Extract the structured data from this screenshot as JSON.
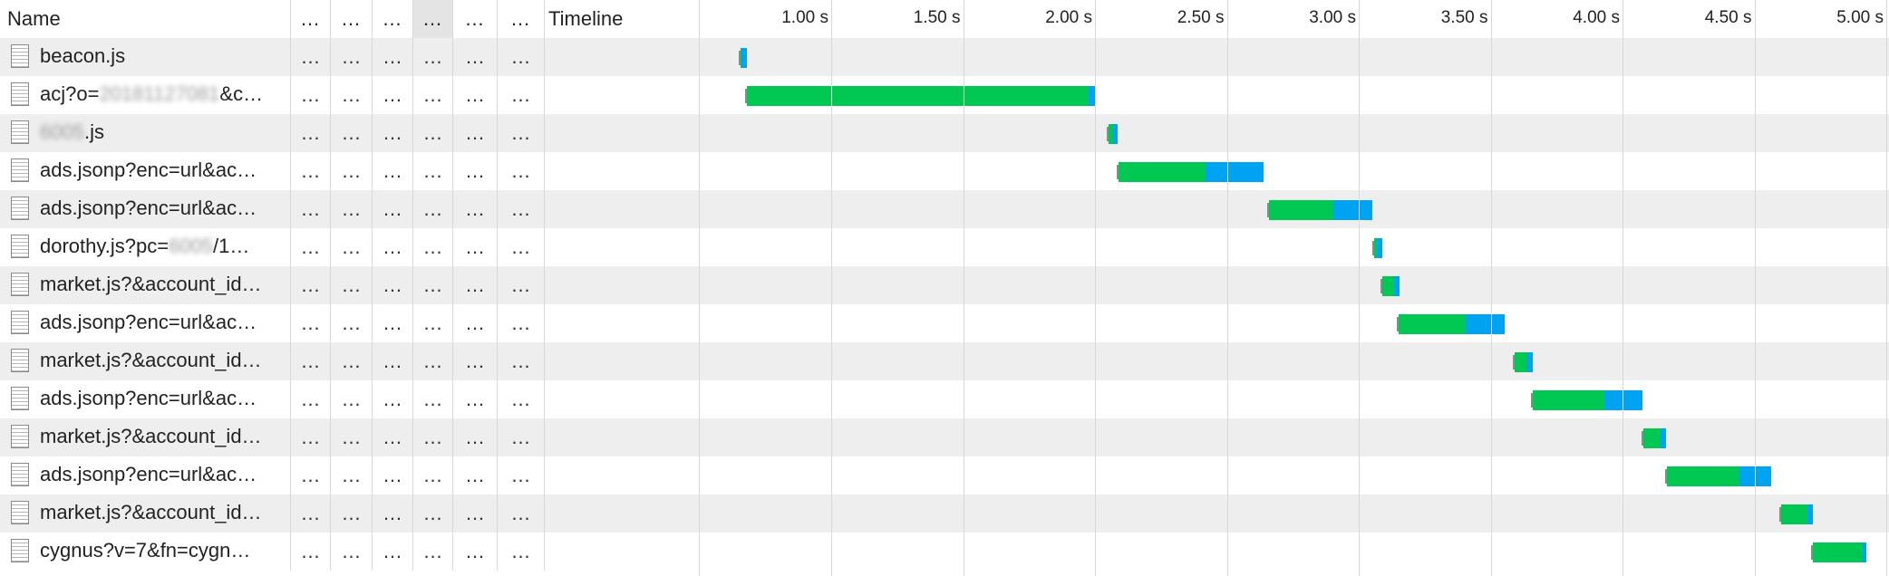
{
  "header": {
    "name_label": "Name",
    "column_labels": [
      "…",
      "…",
      "…",
      "…",
      "…",
      "…"
    ],
    "timeline_label": "Timeline",
    "ticks": [
      "1.00 s",
      "1.50 s",
      "2.00 s",
      "2.50 s",
      "3.00 s",
      "3.50 s",
      "4.00 s",
      "4.50 s",
      "5.00 s"
    ]
  },
  "colors": {
    "waiting": "#00c853",
    "receiving": "#00a3f2",
    "row_alt": "#eeeeee"
  },
  "requests": [
    {
      "parts": [
        {
          "t": "beacon.js"
        }
      ],
      "cells": [
        "…",
        "…",
        "…",
        "…",
        "…",
        "…"
      ],
      "start": 0.655,
      "wait": 0.005,
      "recv": 0.02
    },
    {
      "parts": [
        {
          "t": "acj?o="
        },
        {
          "t": "20181127081",
          "blur": true
        },
        {
          "t": "&c…"
        }
      ],
      "cells": [
        "…",
        "…",
        "…",
        "…",
        "…",
        "…"
      ],
      "start": 0.68,
      "wait": 1.295,
      "recv": 0.025
    },
    {
      "parts": [
        {
          "t": "6005",
          "blur": true
        },
        {
          "t": ".js"
        }
      ],
      "cells": [
        "…",
        "…",
        "…",
        "…",
        "…",
        "…"
      ],
      "start": 2.05,
      "wait": 0.02,
      "recv": 0.015
    },
    {
      "parts": [
        {
          "t": "ads.jsonp?enc=url&ac…"
        }
      ],
      "cells": [
        "…",
        "…",
        "…",
        "…",
        "…",
        "…"
      ],
      "start": 2.09,
      "wait": 0.33,
      "recv": 0.22
    },
    {
      "parts": [
        {
          "t": "ads.jsonp?enc=url&ac…"
        }
      ],
      "cells": [
        "…",
        "…",
        "…",
        "…",
        "…",
        "…"
      ],
      "start": 2.66,
      "wait": 0.245,
      "recv": 0.145
    },
    {
      "parts": [
        {
          "t": "dorothy.js?pc="
        },
        {
          "t": "6005",
          "blur": true
        },
        {
          "t": "/1…"
        }
      ],
      "cells": [
        "…",
        "…",
        "…",
        "…",
        "…",
        "…"
      ],
      "start": 3.06,
      "wait": 0.01,
      "recv": 0.02
    },
    {
      "parts": [
        {
          "t": "market.js?&account_id…"
        }
      ],
      "cells": [
        "…",
        "…",
        "…",
        "…",
        "…",
        "…"
      ],
      "start": 3.09,
      "wait": 0.045,
      "recv": 0.02
    },
    {
      "parts": [
        {
          "t": "ads.jsonp?enc=url&ac…"
        }
      ],
      "cells": [
        "…",
        "…",
        "…",
        "…",
        "…",
        "…"
      ],
      "start": 3.15,
      "wait": 0.255,
      "recv": 0.15
    },
    {
      "parts": [
        {
          "t": "market.js?&account_id…"
        }
      ],
      "cells": [
        "…",
        "…",
        "…",
        "…",
        "…",
        "…"
      ],
      "start": 3.59,
      "wait": 0.05,
      "recv": 0.02
    },
    {
      "parts": [
        {
          "t": "ads.jsonp?enc=url&ac…"
        }
      ],
      "cells": [
        "…",
        "…",
        "…",
        "…",
        "…",
        "…"
      ],
      "start": 3.66,
      "wait": 0.27,
      "recv": 0.145
    },
    {
      "parts": [
        {
          "t": "market.js?&account_id…"
        }
      ],
      "cells": [
        "…",
        "…",
        "…",
        "…",
        "…",
        "…"
      ],
      "start": 4.08,
      "wait": 0.065,
      "recv": 0.02
    },
    {
      "parts": [
        {
          "t": "ads.jsonp?enc=url&ac…"
        }
      ],
      "cells": [
        "…",
        "…",
        "…",
        "…",
        "…",
        "…"
      ],
      "start": 4.17,
      "wait": 0.275,
      "recv": 0.12
    },
    {
      "parts": [
        {
          "t": "market.js?&account_id…"
        }
      ],
      "cells": [
        "…",
        "…",
        "…",
        "…",
        "…",
        "…"
      ],
      "start": 4.6,
      "wait": 0.1,
      "recv": 0.02
    },
    {
      "parts": [
        {
          "t": "cygnus?v=7&fn=cygn…"
        }
      ],
      "cells": [
        "…",
        "…",
        "…",
        "…",
        "…",
        "…"
      ],
      "start": 4.72,
      "wait": 0.19,
      "recv": 0.015
    }
  ]
}
